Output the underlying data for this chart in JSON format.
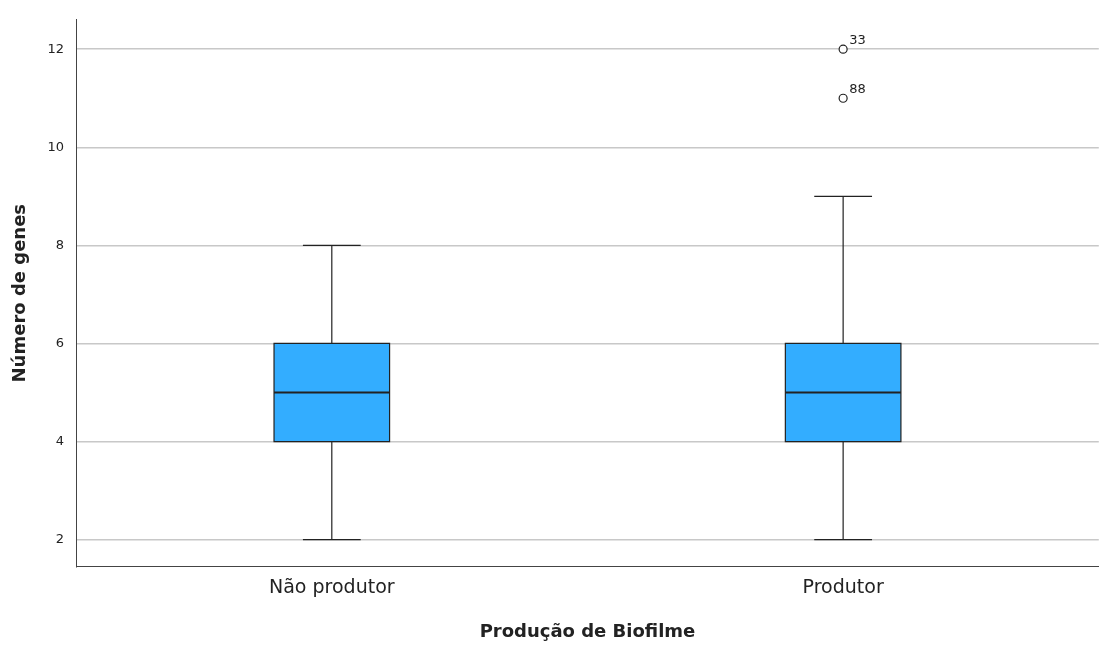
{
  "chart_data": {
    "type": "box",
    "xlabel": "Produção de Biofilme",
    "ylabel": "Número de genes",
    "categories": [
      "Não produtor",
      "Produtor"
    ],
    "color": "#33adff",
    "boxes": [
      {
        "low": 2,
        "q1": 4,
        "median": 5,
        "q3": 6,
        "high": 8
      },
      {
        "low": 2,
        "q1": 4,
        "median": 5,
        "q3": 6,
        "high": 9,
        "outliers": [
          12,
          11
        ]
      }
    ],
    "ylim": [
      1.45,
      12.6
    ],
    "yticks": [
      2,
      4,
      6,
      8,
      10,
      12
    ],
    "grid": "y",
    "annotations": [
      "33",
      "88"
    ]
  }
}
